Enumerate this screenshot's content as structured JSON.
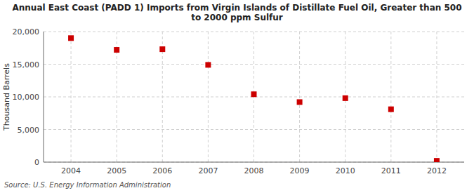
{
  "chart_data": {
    "type": "scatter",
    "title": "Annual East Coast (PADD 1) Imports from Virgin Islands of Distillate Fuel Oil, Greater than 500\nto 2000 ppm Sulfur",
    "y_label": "Thousand Barrels",
    "annotation": "Source: U.S. Energy Information Administration",
    "x": [
      2004,
      2005,
      2006,
      2007,
      2008,
      2009,
      2010,
      2011,
      2012
    ],
    "values": [
      19000,
      17200,
      17300,
      14900,
      10400,
      9200,
      9800,
      8100,
      200
    ],
    "color": "#cc0000",
    "marker": "square",
    "xlim": [
      2003.4,
      2012.6
    ],
    "xticks": [
      2004,
      2005,
      2006,
      2007,
      2008,
      2009,
      2010,
      2011,
      2012
    ],
    "ylim": [
      0,
      20000
    ],
    "yticks": [
      0,
      {
        "value": 5000,
        "label": "5,000"
      },
      {
        "value": 10000,
        "label": "10,000"
      },
      {
        "value": 15000,
        "label": "15,000"
      },
      {
        "value": 20000,
        "label": "20,000"
      }
    ],
    "grid": true
  }
}
